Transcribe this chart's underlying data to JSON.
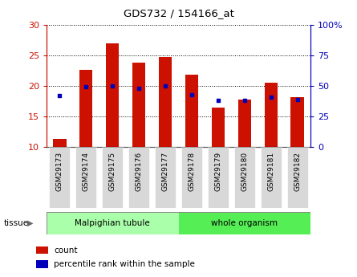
{
  "title": "GDS732 / 154166_at",
  "samples": [
    "GSM29173",
    "GSM29174",
    "GSM29175",
    "GSM29176",
    "GSM29177",
    "GSM29178",
    "GSM29179",
    "GSM29180",
    "GSM29181",
    "GSM29182"
  ],
  "counts": [
    11.3,
    22.6,
    27.0,
    23.8,
    24.8,
    21.8,
    16.5,
    17.7,
    20.5,
    18.1
  ],
  "percentiles": [
    42,
    49,
    50,
    48,
    50,
    43,
    38,
    38,
    41,
    39
  ],
  "ylim_left": [
    10,
    30
  ],
  "ylim_right": [
    0,
    100
  ],
  "yticks_left": [
    10,
    15,
    20,
    25,
    30
  ],
  "yticks_right": [
    0,
    25,
    50,
    75,
    100
  ],
  "bar_color": "#cc1100",
  "dot_color": "#0000bb",
  "bar_bottom": 10,
  "tissue_groups": [
    {
      "label": "Malpighian tubule",
      "start": 0,
      "end": 5,
      "color": "#aaffaa"
    },
    {
      "label": "whole organism",
      "start": 5,
      "end": 10,
      "color": "#55ee55"
    }
  ],
  "legend_items": [
    {
      "label": "count",
      "color": "#cc1100"
    },
    {
      "label": "percentile rank within the sample",
      "color": "#0000bb"
    }
  ],
  "background_color": "#ffffff",
  "axis_color_left": "#cc1100",
  "axis_color_right": "#0000bb",
  "bar_width": 0.5,
  "tick_label_bg": "#dddddd",
  "tissue_label_color": "#333333",
  "arrow_color": "#888888"
}
